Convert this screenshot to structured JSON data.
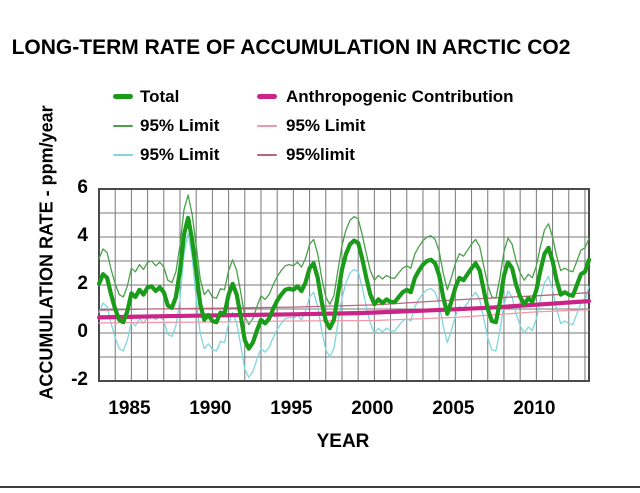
{
  "title": "LONG-TERM RATE OF ACCUMULATION IN ARCTIC CO2",
  "axes": {
    "y_label": "ACCUMULATION RATE - ppm/year",
    "x_label": "YEAR",
    "y_ticks": [
      "6",
      "4",
      "2",
      "0",
      "-2"
    ],
    "x_ticks": [
      "1985",
      "1990",
      "1995",
      "2000",
      "2005",
      "2010"
    ]
  },
  "legend": {
    "items": [
      {
        "label": "Total",
        "key": "total",
        "thick": true,
        "col": 0,
        "row": 0
      },
      {
        "label": "Anthropogenic Contribution",
        "key": "anthro",
        "thick": true,
        "col": 1,
        "row": 0
      },
      {
        "label": "95% Limit",
        "key": "total_upper95",
        "thick": false,
        "col": 0,
        "row": 1
      },
      {
        "label": "95% Limit",
        "key": "anthro_lower95",
        "thick": false,
        "col": 1,
        "row": 1
      },
      {
        "label": "95% Limit",
        "key": "total_lower95",
        "thick": false,
        "col": 0,
        "row": 2
      },
      {
        "label": "95%limit",
        "key": "anthro_upper95",
        "thick": false,
        "col": 1,
        "row": 2
      }
    ]
  },
  "colors": {
    "total": "#1a9b1a",
    "total_upper95": "#4aa04a",
    "total_lower95": "#7ed7dc",
    "anthro": "#cb2386",
    "anthro_upper95": "#bd6380",
    "anthro_lower95": "#f199a8",
    "grid": "#787878",
    "frame": "#4a4a4a",
    "text": "#000000",
    "divider": "#3f3f3f",
    "background": "#ffffff"
  },
  "chart_data": {
    "type": "line",
    "title": "LONG-TERM RATE OF ACCUMULATION IN ARCTIC CO2",
    "xlabel": "YEAR",
    "ylabel": "ACCUMULATION RATE - ppm/year",
    "xlim": [
      1983,
      2013.25
    ],
    "ylim": [
      -2,
      6
    ],
    "x_tick_values": [
      1985,
      1990,
      1995,
      2000,
      2005,
      2010
    ],
    "y_tick_values": [
      6,
      4,
      2,
      0,
      -2
    ],
    "grid": {
      "on": true,
      "x_interval_years": 1,
      "y_interval_units": 1
    },
    "legend_position": "top",
    "series": [
      {
        "name": "Total",
        "key": "total",
        "thick": true,
        "x_start": 1983,
        "x_step": 0.25,
        "values": [
          2.05,
          2.45,
          2.3,
          1.6,
          1.0,
          0.55,
          0.45,
          0.9,
          1.65,
          1.5,
          1.8,
          1.6,
          1.9,
          1.95,
          1.75,
          1.9,
          1.7,
          1.15,
          1.05,
          1.5,
          2.6,
          4.1,
          4.8,
          3.9,
          2.6,
          1.2,
          0.55,
          0.75,
          0.5,
          0.45,
          0.85,
          0.8,
          1.6,
          2.05,
          1.6,
          0.7,
          -0.3,
          -0.65,
          -0.4,
          0.1,
          0.55,
          0.4,
          0.6,
          1.0,
          1.35,
          1.6,
          1.8,
          1.85,
          1.8,
          1.95,
          1.75,
          2.1,
          2.7,
          2.9,
          2.3,
          1.3,
          0.5,
          0.2,
          0.55,
          1.6,
          2.65,
          3.3,
          3.7,
          3.85,
          3.75,
          3.1,
          2.3,
          1.6,
          1.2,
          1.4,
          1.25,
          1.4,
          1.3,
          1.28,
          1.5,
          1.7,
          1.8,
          1.7,
          2.3,
          2.6,
          2.85,
          3.0,
          3.05,
          2.9,
          2.4,
          1.5,
          0.8,
          1.3,
          1.9,
          2.3,
          2.2,
          2.45,
          2.7,
          2.9,
          2.6,
          1.8,
          1.0,
          0.5,
          0.45,
          1.3,
          2.4,
          2.95,
          2.7,
          2.0,
          1.5,
          1.2,
          1.45,
          1.3,
          1.8,
          2.6,
          3.3,
          3.55,
          3.0,
          2.2,
          1.6,
          1.7,
          1.6,
          1.55,
          2.0,
          2.45,
          2.55,
          3.05
        ]
      },
      {
        "name": "Total 95% Limit (upper)",
        "key": "total_upper95",
        "thick": false,
        "x_start": 1983,
        "x_step": 0.25,
        "values": [
          3.1,
          3.5,
          3.35,
          2.65,
          2.05,
          1.6,
          1.5,
          1.95,
          2.7,
          2.55,
          2.85,
          2.65,
          2.95,
          3.0,
          2.8,
          2.95,
          2.75,
          2.2,
          2.1,
          2.55,
          3.65,
          5.15,
          5.75,
          4.95,
          3.65,
          2.25,
          1.6,
          1.8,
          1.5,
          1.45,
          1.85,
          1.8,
          2.6,
          3.05,
          2.6,
          1.7,
          0.7,
          0.35,
          0.6,
          1.1,
          1.55,
          1.4,
          1.6,
          2.0,
          2.35,
          2.6,
          2.8,
          2.85,
          2.8,
          2.95,
          2.75,
          3.1,
          3.7,
          3.9,
          3.3,
          2.3,
          1.5,
          1.2,
          1.55,
          2.6,
          3.65,
          4.3,
          4.7,
          4.85,
          4.75,
          4.1,
          3.3,
          2.6,
          2.2,
          2.4,
          2.25,
          2.4,
          2.3,
          2.28,
          2.5,
          2.7,
          2.8,
          2.7,
          3.3,
          3.6,
          3.85,
          4.0,
          4.05,
          3.9,
          3.4,
          2.5,
          1.8,
          2.3,
          2.9,
          3.3,
          3.2,
          3.45,
          3.7,
          3.9,
          3.6,
          2.8,
          2.0,
          1.5,
          1.45,
          2.3,
          3.4,
          3.95,
          3.7,
          3.0,
          2.5,
          2.2,
          2.45,
          2.3,
          2.8,
          3.6,
          4.3,
          4.55,
          4.0,
          3.2,
          2.6,
          2.7,
          2.6,
          2.55,
          3.0,
          3.45,
          3.55,
          3.95
        ]
      },
      {
        "name": "Total 95% Limit (lower)",
        "key": "total_lower95",
        "thick": false,
        "x_start": 1983,
        "x_step": 0.25,
        "values": [
          0.85,
          1.25,
          1.1,
          0.4,
          -0.2,
          -0.65,
          -0.75,
          -0.3,
          0.45,
          0.3,
          0.6,
          0.4,
          0.7,
          0.75,
          0.55,
          0.7,
          0.5,
          -0.05,
          -0.15,
          0.3,
          1.4,
          3.3,
          4.15,
          3.2,
          1.4,
          0.0,
          -0.65,
          -0.45,
          -0.7,
          -0.75,
          -0.35,
          -0.4,
          0.4,
          0.85,
          0.4,
          -0.5,
          -1.5,
          -1.85,
          -1.6,
          -1.1,
          -0.65,
          -0.8,
          -0.6,
          -0.2,
          0.15,
          0.4,
          0.6,
          0.65,
          0.6,
          0.75,
          0.55,
          0.9,
          1.5,
          1.7,
          1.1,
          0.1,
          -0.7,
          -1.0,
          -0.65,
          0.4,
          1.45,
          2.1,
          2.5,
          2.65,
          2.55,
          1.9,
          1.1,
          0.4,
          0.0,
          0.2,
          0.05,
          0.2,
          0.1,
          0.08,
          0.3,
          0.5,
          0.6,
          0.5,
          1.1,
          1.4,
          1.65,
          1.8,
          1.85,
          1.7,
          1.2,
          0.3,
          -0.4,
          0.1,
          0.7,
          1.1,
          1.0,
          1.25,
          1.5,
          1.7,
          1.4,
          0.6,
          -0.2,
          -0.7,
          -0.75,
          0.1,
          1.2,
          1.75,
          1.5,
          0.8,
          0.3,
          0.0,
          0.25,
          0.1,
          0.6,
          1.4,
          2.1,
          2.35,
          1.8,
          1.0,
          0.4,
          0.5,
          0.4,
          0.35,
          0.8,
          1.25,
          1.35,
          1.95
        ]
      },
      {
        "name": "Anthropogenic Contribution",
        "key": "anthro",
        "thick": true,
        "x": [
          1983,
          1987,
          1991,
          1995,
          1999,
          2003,
          2007,
          2010,
          2013.25
        ],
        "values": [
          0.65,
          0.7,
          0.74,
          0.78,
          0.83,
          0.93,
          1.05,
          1.18,
          1.33
        ]
      },
      {
        "name": "Anthropogenic 95% limit (upper)",
        "key": "anthro_upper95",
        "thick": false,
        "x": [
          1983,
          1986,
          1990,
          1995,
          2000,
          2005,
          2010,
          2013.25
        ],
        "values": [
          0.95,
          1.0,
          1.03,
          1.08,
          1.17,
          1.38,
          1.55,
          1.68
        ]
      },
      {
        "name": "Anthropogenic 95% Limit (lower)",
        "key": "anthro_lower95",
        "thick": false,
        "x": [
          1983,
          1990,
          1995,
          2000,
          2005,
          2010,
          2013.25
        ],
        "values": [
          0.42,
          0.46,
          0.5,
          0.52,
          0.65,
          0.88,
          0.97
        ]
      }
    ]
  }
}
